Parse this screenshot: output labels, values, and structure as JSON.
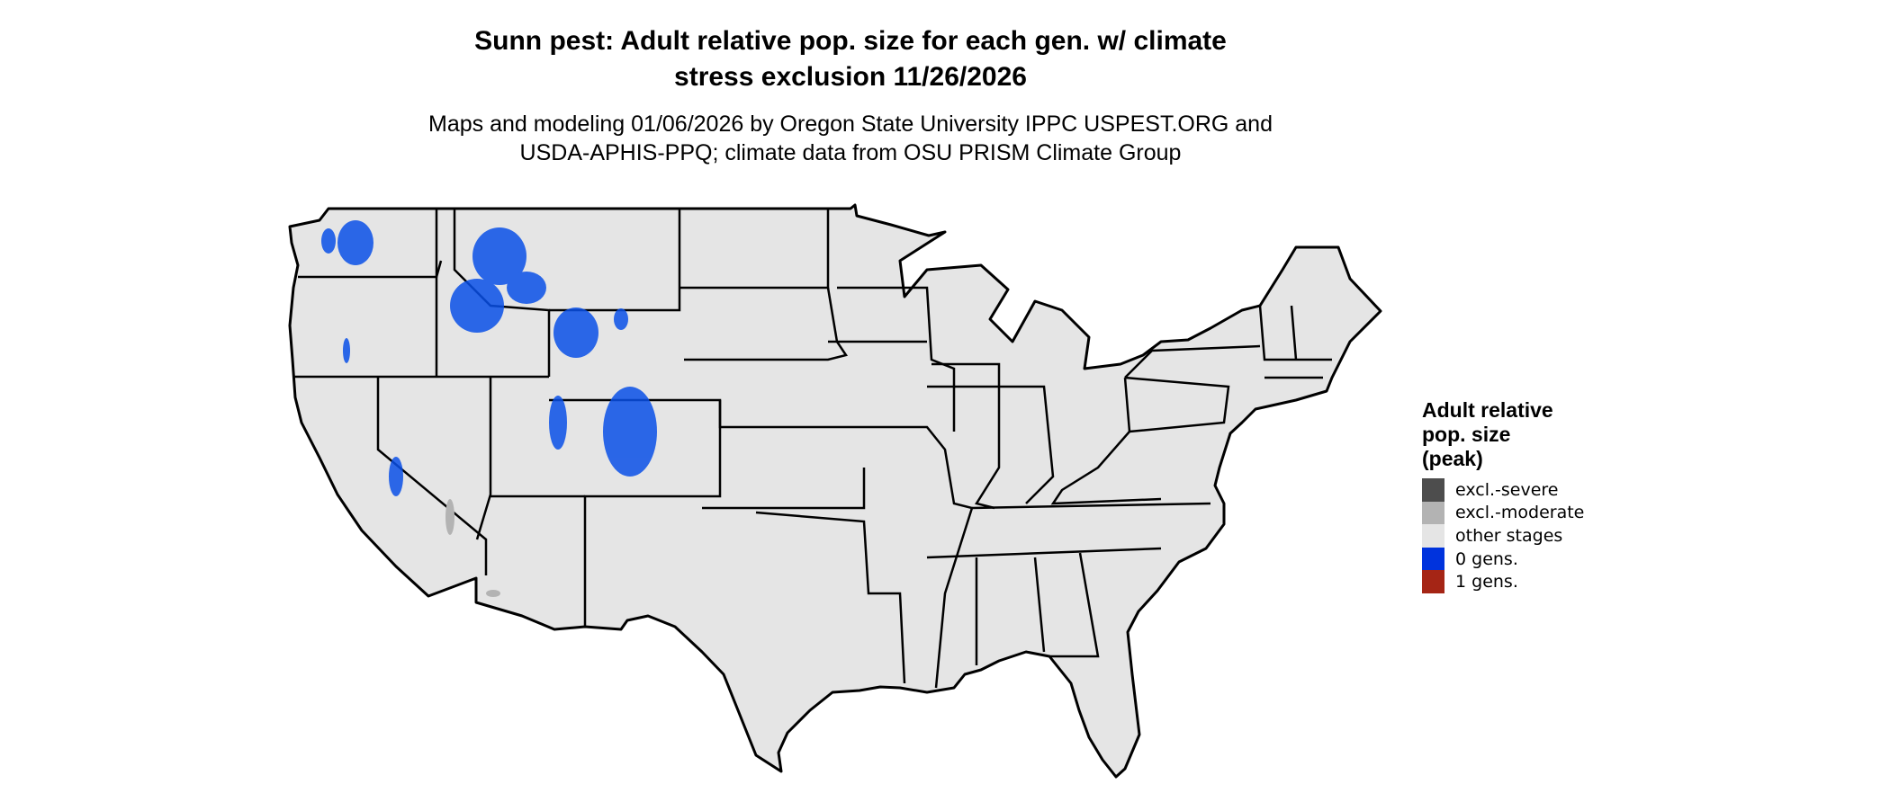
{
  "title": {
    "line1": "Sunn pest: Adult relative pop. size for each gen. w/ climate",
    "line2": "stress exclusion 11/26/2026"
  },
  "subtitle": {
    "line1": "Maps and modeling 01/06/2026 by Oregon State University IPPC USPEST.ORG and",
    "line2": "USDA-APHIS-PPQ; climate data from OSU PRISM Climate Group"
  },
  "map": {
    "region": "Contiguous United States",
    "land_color": "#e5e5e5",
    "border_color": "#000000"
  },
  "legend": {
    "title_lines": [
      "Adult relative",
      "pop. size",
      "(peak)"
    ],
    "items": [
      {
        "label": "excl.-severe",
        "color": "#4d4d4d"
      },
      {
        "label": "excl.-moderate",
        "color": "#b3b3b3"
      },
      {
        "label": "other stages",
        "color": "#e5e5e5"
      },
      {
        "label": "0 gens.",
        "color": "#0033dd"
      },
      {
        "label": "1 gens.",
        "color": "#a52515"
      }
    ]
  }
}
